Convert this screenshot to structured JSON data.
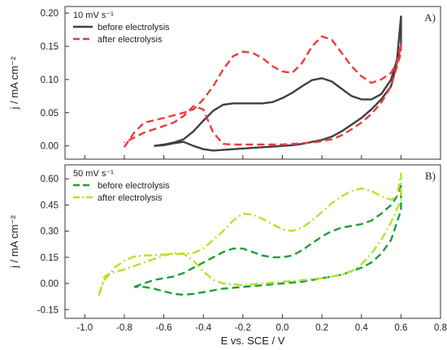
{
  "chart_data": [
    {
      "type": "line",
      "panel_label": "A)",
      "scan_rate_label": "10 mV s⁻¹",
      "xlabel": "",
      "ylabel": "j / mA cm⁻²",
      "xlim": [
        -1.1,
        0.8
      ],
      "ylim": [
        -0.02,
        0.21
      ],
      "yticks": [
        0.0,
        0.05,
        0.1,
        0.15,
        0.2
      ],
      "ytick_labels": [
        "0.00",
        "0.05",
        "0.10",
        "0.15",
        "0.20"
      ],
      "legend_position": "top-left",
      "series": [
        {
          "name": "before electrolysis",
          "color": "#404040",
          "dash": "solid",
          "x": [
            -0.65,
            -0.6,
            -0.55,
            -0.5,
            -0.45,
            -0.4,
            -0.35,
            -0.3,
            -0.25,
            -0.2,
            -0.15,
            -0.1,
            -0.05,
            0.0,
            0.05,
            0.1,
            0.15,
            0.2,
            0.25,
            0.3,
            0.35,
            0.4,
            0.45,
            0.5,
            0.55,
            0.58,
            0.6,
            0.6,
            0.55,
            0.5,
            0.45,
            0.4,
            0.35,
            0.3,
            0.25,
            0.2,
            0.15,
            0.1,
            0.05,
            0.0,
            -0.05,
            -0.1,
            -0.15,
            -0.2,
            -0.25,
            -0.3,
            -0.35,
            -0.4,
            -0.45,
            -0.5,
            -0.55,
            -0.6,
            -0.65
          ],
          "y": [
            0.0,
            0.002,
            0.005,
            0.01,
            0.022,
            0.038,
            0.053,
            0.062,
            0.064,
            0.064,
            0.064,
            0.064,
            0.066,
            0.072,
            0.08,
            0.09,
            0.099,
            0.102,
            0.097,
            0.086,
            0.075,
            0.07,
            0.07,
            0.078,
            0.1,
            0.13,
            0.195,
            0.15,
            0.09,
            0.07,
            0.055,
            0.042,
            0.032,
            0.022,
            0.014,
            0.009,
            0.006,
            0.003,
            0.001,
            0.0,
            -0.001,
            -0.002,
            -0.003,
            -0.004,
            -0.005,
            -0.006,
            -0.007,
            -0.005,
            0.0,
            0.006,
            0.004,
            0.001,
            0.0
          ]
        },
        {
          "name": "after electrolysis",
          "color": "#ee3b3b",
          "dash": "dashed",
          "x": [
            -0.8,
            -0.75,
            -0.7,
            -0.6,
            -0.5,
            -0.45,
            -0.4,
            -0.35,
            -0.3,
            -0.25,
            -0.2,
            -0.15,
            -0.1,
            -0.05,
            0.0,
            0.05,
            0.1,
            0.15,
            0.2,
            0.25,
            0.3,
            0.35,
            0.4,
            0.45,
            0.5,
            0.55,
            0.58,
            0.6,
            0.6,
            0.55,
            0.5,
            0.45,
            0.4,
            0.35,
            0.3,
            0.25,
            0.2,
            0.15,
            0.1,
            0.05,
            0.0,
            -0.05,
            -0.1,
            -0.15,
            -0.2,
            -0.25,
            -0.3,
            -0.35,
            -0.4,
            -0.45,
            -0.5,
            -0.55,
            -0.6,
            -0.7,
            -0.8
          ],
          "y": [
            -0.002,
            0.02,
            0.035,
            0.042,
            0.05,
            0.055,
            0.07,
            0.09,
            0.115,
            0.135,
            0.142,
            0.14,
            0.132,
            0.12,
            0.112,
            0.11,
            0.125,
            0.15,
            0.165,
            0.16,
            0.14,
            0.12,
            0.105,
            0.095,
            0.1,
            0.11,
            0.125,
            0.155,
            0.14,
            0.09,
            0.065,
            0.048,
            0.035,
            0.025,
            0.016,
            0.01,
            0.007,
            0.005,
            0.004,
            0.003,
            0.002,
            0.002,
            0.002,
            0.002,
            0.002,
            0.002,
            0.003,
            0.02,
            0.055,
            0.06,
            0.045,
            0.035,
            0.03,
            0.02,
            0.005
          ]
        }
      ]
    },
    {
      "type": "line",
      "panel_label": "B)",
      "scan_rate_label": "50 mV s⁻¹",
      "xlabel": "E vs. SCE / V",
      "ylabel": "j / mA cm⁻²",
      "xlim": [
        -1.1,
        0.8
      ],
      "ylim": [
        -0.2,
        0.68
      ],
      "xticks": [
        -1.0,
        -0.8,
        -0.6,
        -0.4,
        -0.2,
        0.0,
        0.2,
        0.4,
        0.6,
        0.8
      ],
      "xtick_labels": [
        "-1.0",
        "-0.8",
        "-0.6",
        "-0.4",
        "-0.2",
        "0.0",
        "0.2",
        "0.4",
        "0.6",
        "0.8"
      ],
      "yticks": [
        -0.15,
        0.0,
        0.15,
        0.3,
        0.45,
        0.6
      ],
      "ytick_labels": [
        "-0.15",
        "0.00",
        "0.15",
        "0.30",
        "0.45",
        "0.60"
      ],
      "legend_position": "top-left",
      "series": [
        {
          "name": "before electrolysis",
          "color": "#1e9e3a",
          "dash": "dashed",
          "x": [
            -0.75,
            -0.7,
            -0.65,
            -0.6,
            -0.55,
            -0.5,
            -0.45,
            -0.4,
            -0.35,
            -0.3,
            -0.25,
            -0.2,
            -0.15,
            -0.1,
            -0.05,
            0.0,
            0.05,
            0.1,
            0.15,
            0.2,
            0.25,
            0.3,
            0.35,
            0.4,
            0.45,
            0.5,
            0.55,
            0.58,
            0.6,
            0.6,
            0.55,
            0.5,
            0.45,
            0.4,
            0.35,
            0.3,
            0.25,
            0.2,
            0.15,
            0.1,
            0.05,
            0.0,
            -0.05,
            -0.1,
            -0.15,
            -0.2,
            -0.25,
            -0.3,
            -0.35,
            -0.4,
            -0.45,
            -0.5,
            -0.55,
            -0.6,
            -0.65,
            -0.7,
            -0.75
          ],
          "y": [
            -0.02,
            0.0,
            0.02,
            0.03,
            0.04,
            0.06,
            0.09,
            0.12,
            0.15,
            0.18,
            0.2,
            0.2,
            0.18,
            0.16,
            0.15,
            0.15,
            0.16,
            0.19,
            0.23,
            0.27,
            0.3,
            0.32,
            0.33,
            0.34,
            0.36,
            0.4,
            0.45,
            0.5,
            0.56,
            0.42,
            0.25,
            0.17,
            0.12,
            0.09,
            0.07,
            0.05,
            0.04,
            0.03,
            0.02,
            0.01,
            0.005,
            0.0,
            -0.005,
            -0.01,
            -0.015,
            -0.02,
            -0.025,
            -0.03,
            -0.04,
            -0.05,
            -0.06,
            -0.065,
            -0.06,
            -0.045,
            -0.03,
            -0.02,
            -0.02
          ]
        },
        {
          "name": "after electrolysis",
          "color": "#b5e32a",
          "dash": "dashdot",
          "x": [
            -0.93,
            -0.9,
            -0.87,
            -0.85,
            -0.8,
            -0.75,
            -0.7,
            -0.6,
            -0.5,
            -0.45,
            -0.4,
            -0.35,
            -0.3,
            -0.25,
            -0.2,
            -0.15,
            -0.1,
            -0.05,
            0.0,
            0.05,
            0.1,
            0.15,
            0.2,
            0.25,
            0.3,
            0.35,
            0.4,
            0.45,
            0.5,
            0.55,
            0.58,
            0.6,
            0.6,
            0.55,
            0.5,
            0.45,
            0.4,
            0.35,
            0.3,
            0.25,
            0.2,
            0.15,
            0.1,
            0.05,
            0.0,
            -0.05,
            -0.1,
            -0.15,
            -0.2,
            -0.25,
            -0.3,
            -0.35,
            -0.4,
            -0.45,
            -0.5,
            -0.55,
            -0.6,
            -0.7,
            -0.8,
            -0.87,
            -0.9,
            -0.93
          ],
          "y": [
            -0.07,
            0.02,
            0.06,
            0.09,
            0.13,
            0.155,
            0.16,
            0.165,
            0.17,
            0.175,
            0.2,
            0.25,
            0.3,
            0.36,
            0.4,
            0.395,
            0.37,
            0.34,
            0.31,
            0.3,
            0.32,
            0.36,
            0.41,
            0.46,
            0.5,
            0.53,
            0.545,
            0.53,
            0.5,
            0.48,
            0.5,
            0.63,
            0.48,
            0.35,
            0.25,
            0.17,
            0.11,
            0.07,
            0.05,
            0.04,
            0.03,
            0.025,
            0.02,
            0.015,
            0.01,
            0.005,
            0.0,
            -0.005,
            -0.01,
            -0.005,
            0.0,
            0.02,
            0.07,
            0.13,
            0.17,
            0.175,
            0.16,
            0.12,
            0.08,
            0.06,
            0.04,
            -0.07
          ]
        }
      ]
    }
  ]
}
